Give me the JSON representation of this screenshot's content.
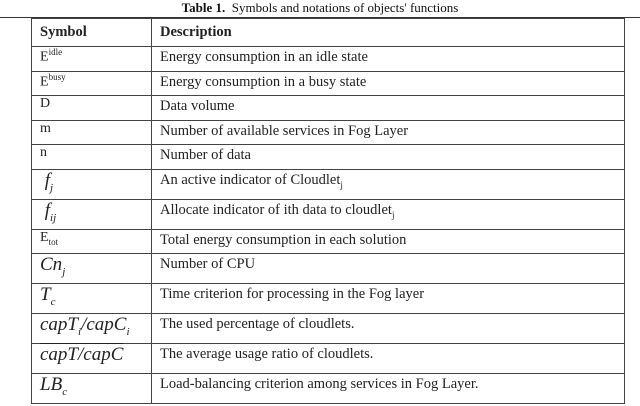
{
  "caption": {
    "label": "Table 1.",
    "text": "Symbols and notations of objects' functions"
  },
  "headers": {
    "symbol": "Symbol",
    "description": "Description"
  },
  "rows": [
    {
      "base": "E",
      "sup": "idle",
      "sub": "",
      "desc": "Energy consumption in an idle state"
    },
    {
      "base": "E",
      "sup": "busy",
      "sub": "",
      "desc": "Energy consumption in a busy state"
    },
    {
      "base": "D",
      "sup": "",
      "sub": "",
      "desc": "Data volume"
    },
    {
      "base": "m",
      "sup": "",
      "sub": "",
      "desc": "Number of available services in Fog Layer"
    },
    {
      "base": "n",
      "sup": "",
      "sub": "",
      "desc": "Number of data"
    },
    {
      "base": "f",
      "sup": "",
      "sub": "j",
      "desc": "An active indicator of Cloudlet",
      "desc_sub": "j"
    },
    {
      "base": "f",
      "sup": "",
      "sub": "ij",
      "desc": "Allocate indicator of ith data to cloudlet",
      "desc_sub": "j"
    },
    {
      "base": "E",
      "sup": "",
      "sub": "tot",
      "desc": "Total energy consumption in each solution"
    },
    {
      "base": "Cn",
      "sup": "",
      "sub": "j",
      "desc": "Number of CPU"
    },
    {
      "base": "T",
      "sup": "",
      "sub": "c",
      "desc": "Time criterion for processing in the Fog layer"
    },
    {
      "base": "capT",
      "sub": "i",
      "base2": "/capC",
      "sub2": "i",
      "desc": "The used percentage of cloudlets."
    },
    {
      "base": "capT/capC",
      "overline": true,
      "desc": "The average usage ratio of cloudlets."
    },
    {
      "base": "LB",
      "sup": "",
      "sub": "c",
      "desc": "Load-balancing criterion among services in Fog Layer."
    }
  ]
}
